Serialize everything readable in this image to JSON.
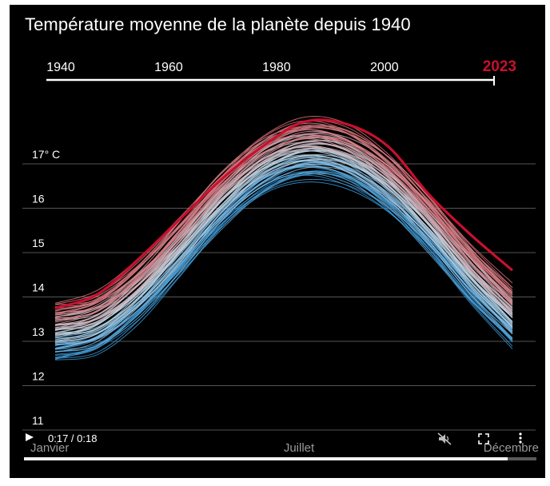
{
  "title": "Température moyenne de la planète depuis 1940",
  "timeline": {
    "start_year": 1940,
    "end_year": 2023,
    "labels": [
      "1940",
      "1960",
      "1980",
      "2000"
    ],
    "current_label": "2023",
    "current_color": "#c8102e"
  },
  "video": {
    "time": "0:17 / 0:18",
    "progress": 0.944,
    "play_icon": "play-icon",
    "mute_icon": "muted-speaker-icon",
    "fullscreen_icon": "fullscreen-icon",
    "more_icon": "more-vertical-icon"
  },
  "chart_data": {
    "type": "line",
    "title": "Température moyenne de la planète depuis 1940",
    "ylabel": "",
    "xlabel": "",
    "x": [
      0,
      1,
      2,
      3,
      4,
      5,
      6,
      7,
      8,
      9,
      10,
      11
    ],
    "x_unit": "month index (January–December)",
    "x_tick_labels": [
      "Janvier",
      "Juillet",
      "Décembre"
    ],
    "x_tick_positions": [
      0,
      6,
      11
    ],
    "ylim": [
      11,
      17.5
    ],
    "yticks": [
      11,
      12,
      13,
      14,
      15,
      16,
      17
    ],
    "ytick_labels": [
      "11",
      "12",
      "13",
      "14",
      "15",
      "16",
      "17° C"
    ],
    "grid": true,
    "colors": {
      "early": "#2a90d4",
      "mid": "#c9d6df",
      "late": "#d96870",
      "highlight": "#c8102e",
      "grid": "#555555"
    },
    "baseline_1940": [
      12.65,
      12.85,
      13.55,
      14.55,
      15.6,
      16.4,
      16.75,
      16.6,
      16.0,
      15.05,
      13.95,
      13.0
    ],
    "warming_1940_2022": 1.15,
    "highlight_series": {
      "name": "2023",
      "values": [
        13.75,
        14.05,
        14.85,
        15.75,
        16.65,
        17.4,
        17.95,
        17.9,
        17.4,
        16.3,
        15.4,
        14.6
      ]
    },
    "series_years": [
      1940,
      1941,
      1942,
      1943,
      1944,
      1945,
      1946,
      1947,
      1948,
      1949,
      1950,
      1951,
      1952,
      1953,
      1954,
      1955,
      1956,
      1957,
      1958,
      1959,
      1960,
      1961,
      1962,
      1963,
      1964,
      1965,
      1966,
      1967,
      1968,
      1969,
      1970,
      1971,
      1972,
      1973,
      1974,
      1975,
      1976,
      1977,
      1978,
      1979,
      1980,
      1981,
      1982,
      1983,
      1984,
      1985,
      1986,
      1987,
      1988,
      1989,
      1990,
      1991,
      1992,
      1993,
      1994,
      1995,
      1996,
      1997,
      1998,
      1999,
      2000,
      2001,
      2002,
      2003,
      2004,
      2005,
      2006,
      2007,
      2008,
      2009,
      2010,
      2011,
      2012,
      2013,
      2014,
      2015,
      2016,
      2017,
      2018,
      2019,
      2020,
      2021,
      2022
    ]
  }
}
